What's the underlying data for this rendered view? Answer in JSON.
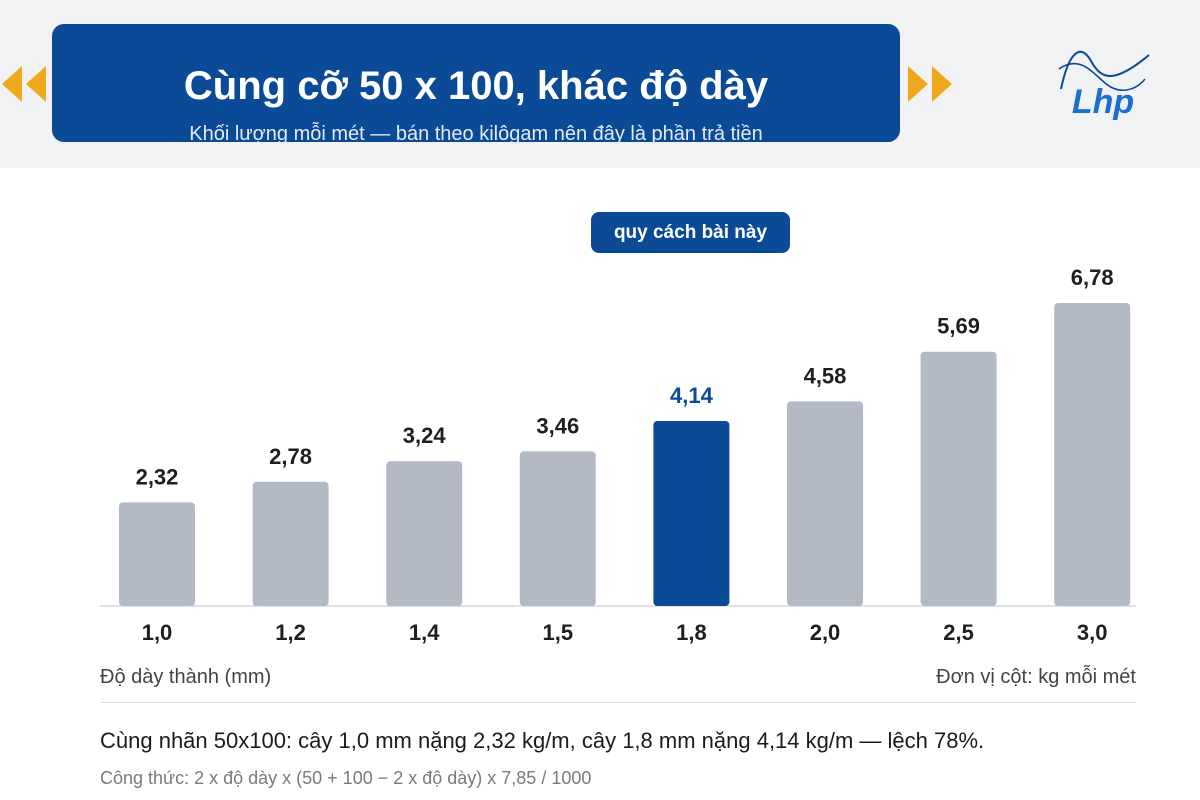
{
  "header": {
    "title": "Cùng cỡ 50 x 100, khác độ dày",
    "subtitle": "Khối lượng mỗi mét — bán theo kilôgam nên đây là phần trả tiền"
  },
  "logo": {
    "text": "Lhp"
  },
  "badge": {
    "label": "quy cách bài này"
  },
  "chart_data": {
    "type": "bar",
    "categories": [
      "1,0",
      "1,2",
      "1,4",
      "1,5",
      "1,8",
      "2,0",
      "2,5",
      "3,0"
    ],
    "values": [
      2.32,
      2.78,
      3.24,
      3.46,
      4.14,
      4.58,
      5.69,
      6.78
    ],
    "value_labels": [
      "2,32",
      "2,78",
      "3,24",
      "3,46",
      "4,14",
      "4,58",
      "5,69",
      "6,78"
    ],
    "highlight_index": 4,
    "xlabel": "Độ dày thành (mm)",
    "unit_note": "Đơn vị cột: kg mỗi mét",
    "ylim": [
      0,
      6.78
    ],
    "grid": false,
    "colors": {
      "bar": "#b3bac6",
      "highlight": "#0b4a97",
      "label": "#1f1f1f",
      "highlight_label": "#0b4a97"
    }
  },
  "footer": {
    "note": "Cùng nhãn 50x100: cây 1,0 mm nặng 2,32 kg/m, cây 1,8 mm nặng 4,14 kg/m — lệch 78%.",
    "formula": "Công thức: 2 x độ dày x (50 + 100 − 2 x độ dày) x 7,85 / 1000"
  },
  "colors": {
    "brand": "#0b4a97",
    "accent": "#f0a81c",
    "background_band": "#f1f2f4"
  }
}
